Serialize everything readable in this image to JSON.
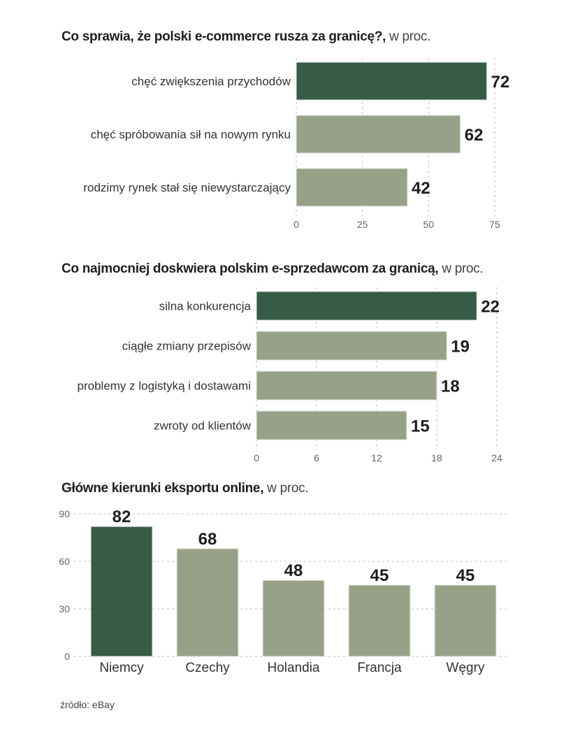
{
  "colors": {
    "highlight": "#365c47",
    "normal": "#97a188",
    "grid": "#bbbbbb",
    "label_text": "#333333",
    "value_text": "#1e1e1e",
    "tick_text": "#666666"
  },
  "source": "źródło: eBay",
  "chart_data": [
    {
      "type": "bar",
      "orientation": "horizontal",
      "title": "Co sprawia, że polski e-commerce rusza za granicę?,",
      "title_unit": "w proc.",
      "categories": [
        "chęć zwiększenia przychodów",
        "chęć spróbowania sił na nowym rynku",
        "rodzimy rynek stał się niewystarczający"
      ],
      "values": [
        72,
        62,
        42
      ],
      "highlight_index": 0,
      "xlim": [
        0,
        75
      ],
      "ticks": [
        0,
        25,
        50,
        75
      ],
      "tick_labels": [
        "0",
        "25",
        "50",
        "75"
      ],
      "grid": true,
      "xlabel": "",
      "ylabel": ""
    },
    {
      "type": "bar",
      "orientation": "horizontal",
      "title": "Co najmocniej doskwiera polskim e-sprzedawcom za granicą,",
      "title_unit": "w proc.",
      "categories": [
        "silna konkurencja",
        "ciągłe zmiany przepisów",
        "problemy z logistyką i dostawami",
        "zwroty od klientów"
      ],
      "values": [
        22,
        19,
        18,
        15
      ],
      "highlight_index": 0,
      "xlim": [
        0,
        24
      ],
      "ticks": [
        0,
        6,
        12,
        18,
        24
      ],
      "tick_labels": [
        "0",
        "6",
        "12",
        "18",
        "24"
      ],
      "grid": true,
      "xlabel": "",
      "ylabel": ""
    },
    {
      "type": "bar",
      "orientation": "vertical",
      "title": "Główne kierunki eksportu online,",
      "title_unit": "w proc.",
      "categories": [
        "Niemcy",
        "Czechy",
        "Holandia",
        "Francja",
        "Węgry"
      ],
      "values": [
        82,
        68,
        48,
        45,
        45
      ],
      "highlight_index": 0,
      "ylim": [
        0,
        90
      ],
      "ticks": [
        0,
        30,
        60,
        90
      ],
      "tick_labels": [
        "0",
        "30",
        "60",
        "90"
      ],
      "grid": true,
      "xlabel": "",
      "ylabel": ""
    }
  ]
}
